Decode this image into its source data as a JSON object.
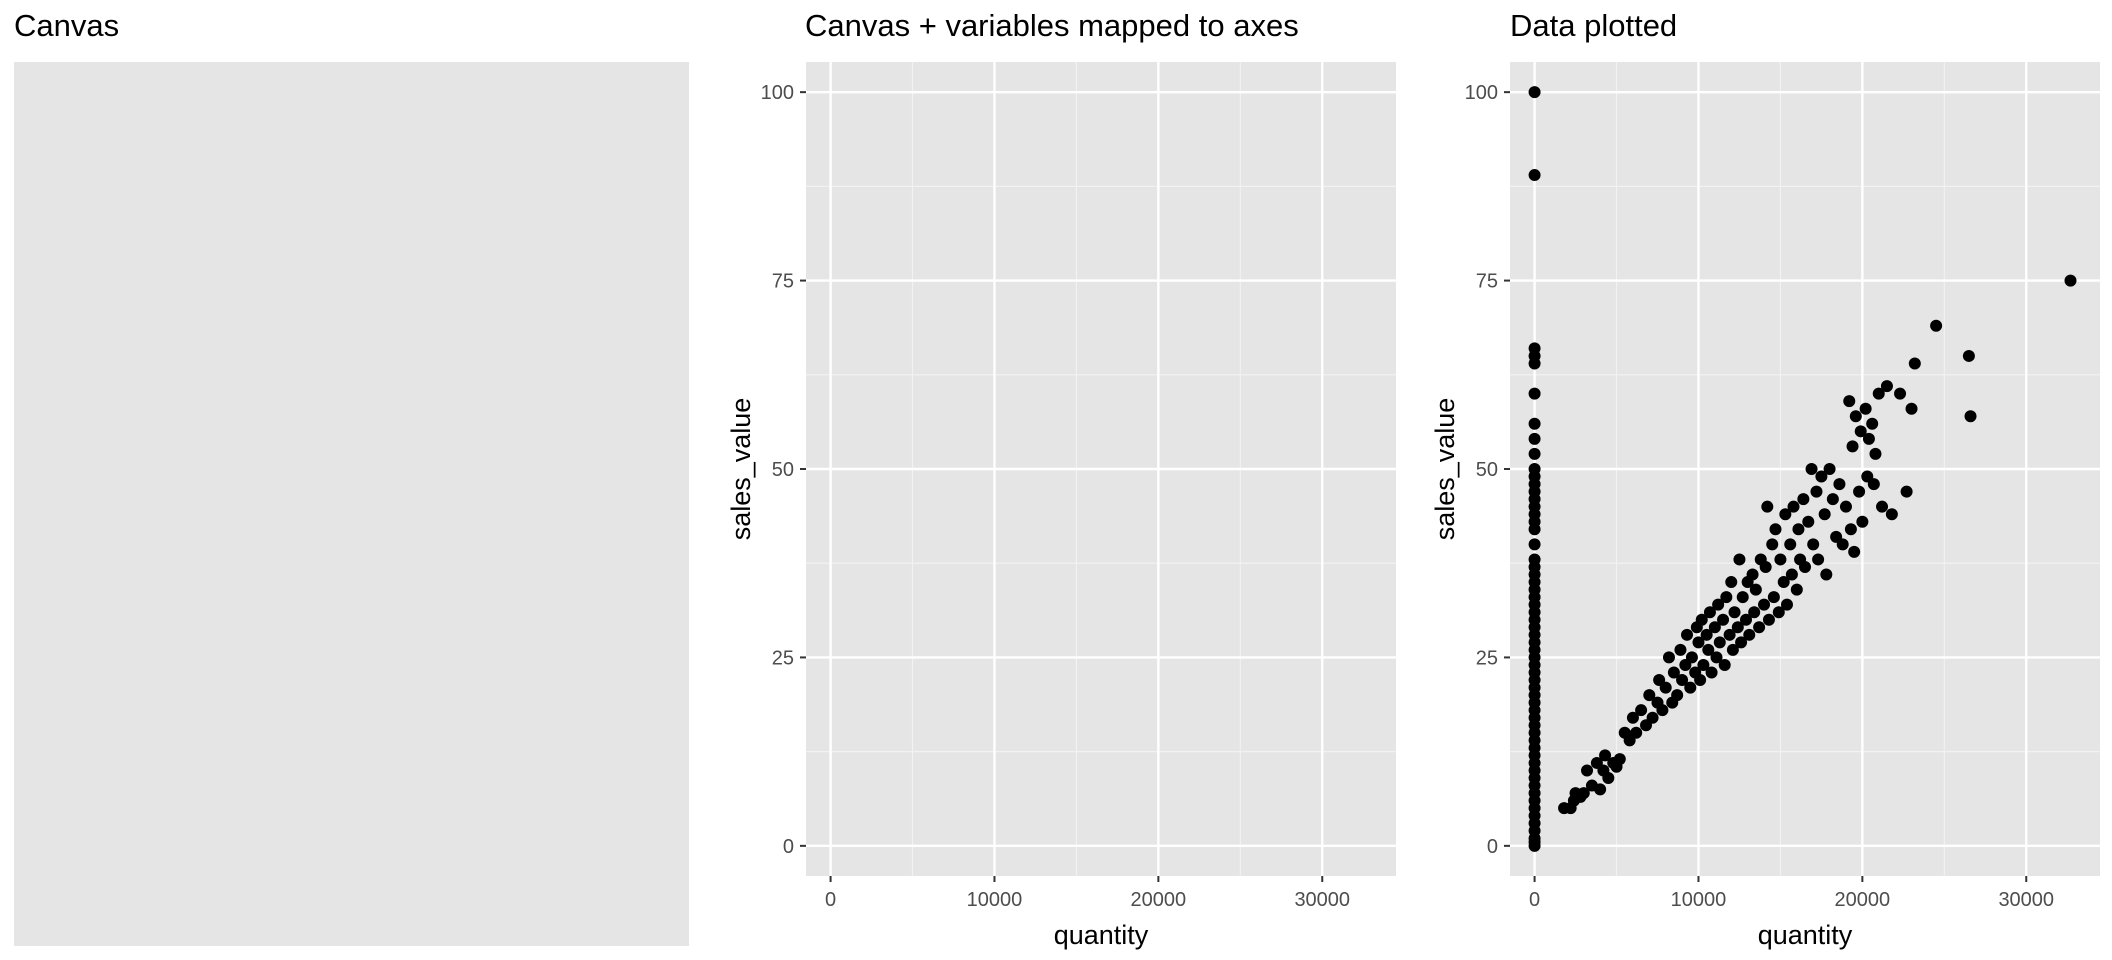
{
  "panels": [
    {
      "title": "Canvas"
    },
    {
      "title": "Canvas + variables mapped to axes"
    },
    {
      "title": "Data plotted"
    }
  ],
  "chart_data": [
    {
      "type": "scatter",
      "title": "Canvas + variables mapped to axes",
      "xlabel": "quantity",
      "ylabel": "sales_value",
      "xlim": [
        -1500,
        34500
      ],
      "ylim": [
        -4,
        104
      ],
      "xticks": [
        0,
        10000,
        20000,
        30000
      ],
      "xtick_labels": [
        "0",
        "10000",
        "20000",
        "30000"
      ],
      "yticks": [
        0,
        25,
        50,
        75,
        100
      ],
      "ytick_labels": [
        "0",
        "25",
        "50",
        "75",
        "100"
      ],
      "grid": true,
      "points": []
    },
    {
      "type": "scatter",
      "title": "Data plotted",
      "xlabel": "quantity",
      "ylabel": "sales_value",
      "xlim": [
        -1500,
        34500
      ],
      "ylim": [
        -4,
        104
      ],
      "xticks": [
        0,
        10000,
        20000,
        30000
      ],
      "xtick_labels": [
        "0",
        "10000",
        "20000",
        "30000"
      ],
      "yticks": [
        0,
        25,
        50,
        75,
        100
      ],
      "ytick_labels": [
        "0",
        "25",
        "50",
        "75",
        "100"
      ],
      "grid": true,
      "point_color": "#000000",
      "points": [
        [
          0,
          100
        ],
        [
          0,
          89
        ],
        [
          0,
          66
        ],
        [
          0,
          65
        ],
        [
          0,
          64
        ],
        [
          0,
          60
        ],
        [
          0,
          56
        ],
        [
          0,
          54
        ],
        [
          0,
          52
        ],
        [
          0,
          50
        ],
        [
          0,
          49
        ],
        [
          0,
          48
        ],
        [
          0,
          47
        ],
        [
          0,
          46
        ],
        [
          0,
          45
        ],
        [
          0,
          44
        ],
        [
          0,
          43
        ],
        [
          0,
          42
        ],
        [
          0,
          40
        ],
        [
          0,
          38
        ],
        [
          0,
          37
        ],
        [
          0,
          36
        ],
        [
          0,
          35
        ],
        [
          0,
          34
        ],
        [
          0,
          33
        ],
        [
          0,
          32
        ],
        [
          0,
          31
        ],
        [
          0,
          30
        ],
        [
          0,
          29
        ],
        [
          0,
          28
        ],
        [
          0,
          27
        ],
        [
          0,
          26
        ],
        [
          0,
          25
        ],
        [
          0,
          24
        ],
        [
          0,
          23
        ],
        [
          0,
          22
        ],
        [
          0,
          21
        ],
        [
          0,
          20
        ],
        [
          0,
          19
        ],
        [
          0,
          18
        ],
        [
          0,
          17
        ],
        [
          0,
          16
        ],
        [
          0,
          15
        ],
        [
          0,
          14
        ],
        [
          0,
          13
        ],
        [
          0,
          12
        ],
        [
          0,
          11
        ],
        [
          0,
          10
        ],
        [
          0,
          9
        ],
        [
          0,
          8
        ],
        [
          0,
          7
        ],
        [
          0,
          6
        ],
        [
          0,
          5
        ],
        [
          0,
          4
        ],
        [
          0,
          3
        ],
        [
          0,
          2
        ],
        [
          0,
          1
        ],
        [
          0,
          0.5
        ],
        [
          0,
          0
        ],
        [
          1800,
          5
        ],
        [
          2200,
          5
        ],
        [
          2400,
          6
        ],
        [
          2500,
          7
        ],
        [
          2800,
          6.5
        ],
        [
          3000,
          7
        ],
        [
          3200,
          10
        ],
        [
          3500,
          8
        ],
        [
          3800,
          11
        ],
        [
          4000,
          7.5
        ],
        [
          4200,
          10
        ],
        [
          4300,
          12
        ],
        [
          4500,
          9
        ],
        [
          4800,
          11
        ],
        [
          5000,
          10.5
        ],
        [
          5200,
          11.5
        ],
        [
          5500,
          15
        ],
        [
          5800,
          14
        ],
        [
          6000,
          17
        ],
        [
          6200,
          15
        ],
        [
          6500,
          18
        ],
        [
          6800,
          16
        ],
        [
          7000,
          20
        ],
        [
          7200,
          17
        ],
        [
          7500,
          19
        ],
        [
          7600,
          22
        ],
        [
          7800,
          18
        ],
        [
          8000,
          21
        ],
        [
          8200,
          25
        ],
        [
          8400,
          19
        ],
        [
          8500,
          23
        ],
        [
          8700,
          20
        ],
        [
          8900,
          26
        ],
        [
          9000,
          22
        ],
        [
          9200,
          24
        ],
        [
          9300,
          28
        ],
        [
          9500,
          21
        ],
        [
          9600,
          25
        ],
        [
          9800,
          23
        ],
        [
          9900,
          29
        ],
        [
          10000,
          27
        ],
        [
          10100,
          22
        ],
        [
          10200,
          30
        ],
        [
          10300,
          24
        ],
        [
          10500,
          28
        ],
        [
          10600,
          26
        ],
        [
          10700,
          31
        ],
        [
          10800,
          23
        ],
        [
          11000,
          29
        ],
        [
          11100,
          25
        ],
        [
          11200,
          32
        ],
        [
          11300,
          27
        ],
        [
          11500,
          30
        ],
        [
          11600,
          24
        ],
        [
          11700,
          33
        ],
        [
          11900,
          28
        ],
        [
          12000,
          35
        ],
        [
          12100,
          26
        ],
        [
          12200,
          31
        ],
        [
          12400,
          29
        ],
        [
          12500,
          38
        ],
        [
          12600,
          27
        ],
        [
          12700,
          33
        ],
        [
          12900,
          30
        ],
        [
          13000,
          35
        ],
        [
          13100,
          28
        ],
        [
          13300,
          36
        ],
        [
          13400,
          31
        ],
        [
          13500,
          34
        ],
        [
          13700,
          29
        ],
        [
          13800,
          38
        ],
        [
          14000,
          32
        ],
        [
          14100,
          37
        ],
        [
          14200,
          45
        ],
        [
          14300,
          30
        ],
        [
          14500,
          40
        ],
        [
          14600,
          33
        ],
        [
          14700,
          42
        ],
        [
          14900,
          31
        ],
        [
          15000,
          38
        ],
        [
          15200,
          35
        ],
        [
          15300,
          44
        ],
        [
          15400,
          32
        ],
        [
          15600,
          40
        ],
        [
          15700,
          36
        ],
        [
          15800,
          45
        ],
        [
          16000,
          34
        ],
        [
          16100,
          42
        ],
        [
          16200,
          38
        ],
        [
          16400,
          46
        ],
        [
          16500,
          37
        ],
        [
          16700,
          43
        ],
        [
          16900,
          50
        ],
        [
          17000,
          40
        ],
        [
          17200,
          47
        ],
        [
          17300,
          38
        ],
        [
          17500,
          49
        ],
        [
          17700,
          44
        ],
        [
          17800,
          36
        ],
        [
          18000,
          50
        ],
        [
          18200,
          46
        ],
        [
          18400,
          41
        ],
        [
          18600,
          48
        ],
        [
          18800,
          40
        ],
        [
          19000,
          45
        ],
        [
          19200,
          59
        ],
        [
          19300,
          42
        ],
        [
          19400,
          53
        ],
        [
          19500,
          39
        ],
        [
          19600,
          57
        ],
        [
          19800,
          47
        ],
        [
          19900,
          55
        ],
        [
          20000,
          43
        ],
        [
          20200,
          58
        ],
        [
          20300,
          49
        ],
        [
          20400,
          54
        ],
        [
          20600,
          56
        ],
        [
          20700,
          48
        ],
        [
          20800,
          52
        ],
        [
          21000,
          60
        ],
        [
          21200,
          45
        ],
        [
          21500,
          61
        ],
        [
          21800,
          44
        ],
        [
          22300,
          60
        ],
        [
          22700,
          47
        ],
        [
          23000,
          58
        ],
        [
          23200,
          64
        ],
        [
          24500,
          69
        ],
        [
          26500,
          65
        ],
        [
          26600,
          57
        ],
        [
          32700,
          75
        ]
      ]
    }
  ]
}
